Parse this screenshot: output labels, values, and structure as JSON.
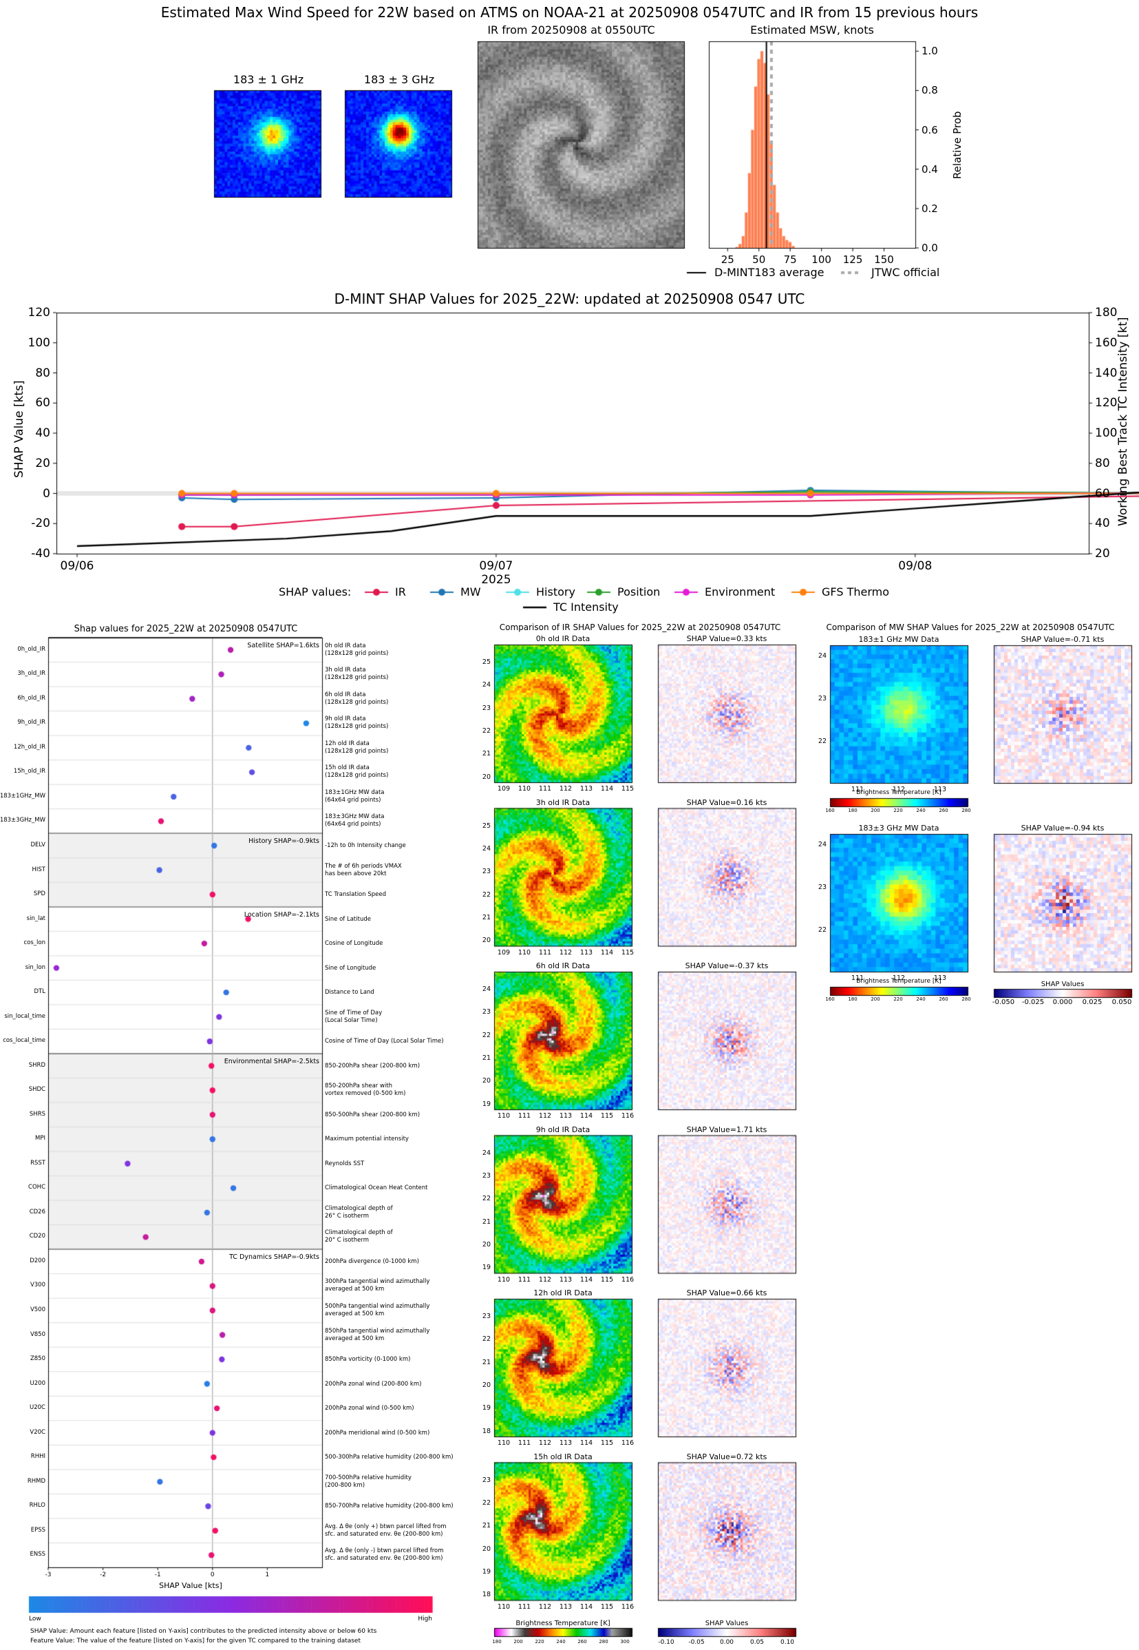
{
  "header": {
    "title": "Estimated Max Wind Speed for 22W based on ATMS on NOAA-21 at 20250908 0547UTC and IR from 15 previous hours",
    "mw1_title": "183 ± 1 GHz",
    "mw3_title": "183 ± 3 GHz",
    "ir_title": "IR from 20250908 at 0550UTC",
    "hist_title": "Estimated MSW, knots",
    "hist_ylabel": "Relative Prob",
    "hist_legend_avg": "D-MINT183 average",
    "hist_legend_jtwc": "JTWC official"
  },
  "shap_ts": {
    "title": "D-MINT SHAP Values for 2025_22W: updated at 20250908 0547 UTC",
    "ylabel_left": "SHAP Value [kts]",
    "ylabel_right": "Working Best Track TC Intensity [kt]",
    "xlabel": "2025",
    "legend_prefix": "SHAP values:",
    "legend_intensity": "TC Intensity"
  },
  "feature_panel": {
    "title": "Shap values for 2025_22W at 20250908 0547UTC",
    "xlabel": "SHAP Value [kts]",
    "colorbar_low": "Low",
    "colorbar_high": "High",
    "footnote1": "SHAP Value: Amount each feature [listed on Y-axis] contributes to the predicted intensity above or below 60 kts",
    "footnote2": "Feature Value: The value of the feature [listed on Y-axis] for the given TC compared to the training dataset"
  },
  "ir_compare": {
    "title": "Comparison of IR SHAP Values for 2025_22W at 20250908 0547UTC",
    "colorbar_label": "Brightness Temperature [K]",
    "shap_colorbar_label": "SHAP Values",
    "panels": [
      {
        "data_title": "0h old IR Data",
        "shap_title": "SHAP Value=0.33 kts",
        "yticks": [
          "25",
          "24",
          "23",
          "22",
          "21",
          "20"
        ],
        "xticks": [
          "109",
          "110",
          "111",
          "112",
          "113",
          "114",
          "115"
        ]
      },
      {
        "data_title": "3h old IR Data",
        "shap_title": "SHAP Value=0.16 kts",
        "yticks": [
          "25",
          "24",
          "23",
          "22",
          "21",
          "20"
        ],
        "xticks": [
          "109",
          "110",
          "111",
          "112",
          "113",
          "114",
          "115"
        ]
      },
      {
        "data_title": "6h old IR Data",
        "shap_title": "SHAP Value=-0.37 kts",
        "yticks": [
          "24",
          "23",
          "22",
          "21",
          "20",
          "19"
        ],
        "xticks": [
          "110",
          "111",
          "112",
          "113",
          "114",
          "115",
          "116"
        ]
      },
      {
        "data_title": "9h old IR Data",
        "shap_title": "SHAP Value=1.71 kts",
        "yticks": [
          "24",
          "23",
          "22",
          "21",
          "20",
          "19"
        ],
        "xticks": [
          "110",
          "111",
          "112",
          "113",
          "114",
          "115",
          "116"
        ]
      },
      {
        "data_title": "12h old IR Data",
        "shap_title": "SHAP Value=0.66 kts",
        "yticks": [
          "23",
          "22",
          "21",
          "20",
          "19",
          "18"
        ],
        "xticks": [
          "110",
          "111",
          "112",
          "113",
          "114",
          "115",
          "116"
        ]
      },
      {
        "data_title": "15h old IR Data",
        "shap_title": "SHAP Value=0.72 kts",
        "yticks": [
          "23",
          "22",
          "21",
          "20",
          "19",
          "18"
        ],
        "xticks": [
          "110",
          "111",
          "112",
          "113",
          "114",
          "115",
          "116"
        ]
      }
    ],
    "bt_ticks": [
      "180",
      "200",
      "220",
      "240",
      "260",
      "280",
      "300"
    ],
    "shap_ticks": [
      "-0.10",
      "-0.05",
      "0.00",
      "0.05",
      "0.10"
    ]
  },
  "mw_compare": {
    "title": "Comparison of MW SHAP Values for 2025_22W at 20250908 0547UTC",
    "panels": [
      {
        "data_title": "183±1 GHz MW Data",
        "shap_title": "SHAP Value=-0.71 kts",
        "yticks": [
          "24",
          "23",
          "22"
        ],
        "xticks": [
          "111",
          "112",
          "113"
        ]
      },
      {
        "data_title": "183±3 GHz MW Data",
        "shap_title": "SHAP Value=-0.94 kts",
        "yticks": [
          "24",
          "23",
          "22"
        ],
        "xticks": [
          "111",
          "112",
          "113"
        ]
      }
    ],
    "colorbar_label": "Brightness Temperature [K]",
    "bt_ticks": [
      "160",
      "180",
      "200",
      "220",
      "240",
      "260",
      "280"
    ],
    "shap_colorbar_label": "SHAP Values",
    "shap_ticks": [
      "-0.050",
      "-0.025",
      "0.000",
      "0.025",
      "0.050"
    ]
  },
  "colors": {
    "IR": "#e0194f",
    "MW": "#1f77b4",
    "History": "#4de0e6",
    "Position": "#2ca02c",
    "Environment": "#e61ad9",
    "GFS Thermo": "#ff7f0e",
    "TC Intensity": "#000000",
    "hist_bar": "#ff7f50",
    "shap_low": "#1e88e5",
    "shap_high": "#ff0d57"
  },
  "chart_data": [
    {
      "type": "bar",
      "title": "Estimated MSW, knots",
      "xlabel": "",
      "ylabel": "Relative Prob",
      "xlim": [
        10,
        175
      ],
      "ylim": [
        0,
        1.05
      ],
      "xticks": [
        25,
        50,
        75,
        100,
        125,
        150
      ],
      "yticks": [
        0.0,
        0.2,
        0.4,
        0.6,
        0.8,
        1.0
      ],
      "bin_width": 2.5,
      "x": [
        32.5,
        35,
        37.5,
        40,
        42.5,
        45,
        47.5,
        50,
        52.5,
        55,
        57.5,
        60,
        62.5,
        65,
        67.5,
        70,
        72.5,
        75,
        77.5
      ],
      "values": [
        0.005,
        0.02,
        0.06,
        0.18,
        0.38,
        0.6,
        0.82,
        0.96,
        1.0,
        0.94,
        0.78,
        0.54,
        0.32,
        0.18,
        0.1,
        0.06,
        0.04,
        0.03,
        0.01
      ],
      "avg_line": 56,
      "jtwc_line": 60,
      "legend": [
        "D-MINT183 average",
        "JTWC official"
      ]
    },
    {
      "type": "line",
      "title": "D-MINT SHAP Values for 2025_22W: updated at 20250908 0547 UTC",
      "xlabel": "2025",
      "ylabel": "SHAP Value [kts]",
      "y2label": "Working Best Track TC Intensity [kt]",
      "xticks": [
        "09/06",
        "09/07",
        "09/08"
      ],
      "ylim": [
        -40,
        120
      ],
      "yticks": [
        -40,
        -20,
        0,
        20,
        40,
        60,
        80,
        100,
        120
      ],
      "y2lim": [
        20,
        180
      ],
      "y2ticks": [
        20,
        40,
        60,
        80,
        100,
        120,
        140,
        160,
        180
      ],
      "series": [
        {
          "name": "IR",
          "x": [
            "09/06 06",
            "09/06 09",
            "09/07 00",
            "09/08 18",
            "09/08 21"
          ],
          "values": [
            -22,
            -22,
            -8,
            -1,
            3
          ]
        },
        {
          "name": "MW",
          "x": [
            "09/06 06",
            "09/06 09",
            "09/07 00",
            "09/07 18",
            "09/08 21"
          ],
          "values": [
            -3,
            -4,
            -3,
            2,
            -1
          ]
        },
        {
          "name": "History",
          "x": [
            "09/06 06",
            "09/06 09",
            "09/07 00",
            "09/07 18",
            "09/08 21"
          ],
          "values": [
            -1,
            -1,
            -1,
            1,
            0
          ]
        },
        {
          "name": "Position",
          "x": [
            "09/06 06",
            "09/06 09",
            "09/07 00",
            "09/07 18",
            "09/08 21"
          ],
          "values": [
            -1,
            -1,
            -1,
            1,
            0
          ]
        },
        {
          "name": "Environment",
          "x": [
            "09/06 06",
            "09/06 09",
            "09/07 00",
            "09/07 18",
            "09/08 21"
          ],
          "values": [
            -1,
            -1,
            -1,
            -1,
            1
          ]
        },
        {
          "name": "GFS Thermo",
          "x": [
            "09/06 06",
            "09/06 09",
            "09/07 00",
            "09/07 18",
            "09/08 21"
          ],
          "values": [
            0,
            0,
            0,
            0,
            0
          ]
        },
        {
          "name": "TC Intensity",
          "axis": "right",
          "x": [
            "09/06 00",
            "09/06 12",
            "09/06 18",
            "09/07 00",
            "09/07 12",
            "09/07 18",
            "09/08 00",
            "09/08 06",
            "09/08 12",
            "09/08 18",
            "09/08 21"
          ],
          "values": [
            25,
            30,
            35,
            45,
            45,
            45,
            50,
            55,
            60,
            65,
            60
          ]
        }
      ]
    },
    {
      "type": "scatter",
      "title": "Shap values for 2025_22W at 20250908 0547UTC",
      "xlabel": "SHAP Value [kts]",
      "xlim": [
        -3,
        2
      ],
      "xticks": [
        -3,
        -2,
        -1,
        0,
        1
      ],
      "groups": [
        {
          "label": "Satellite SHAP=1.6kts",
          "start": 0,
          "end": 7,
          "shaded": false
        },
        {
          "label": "History SHAP=-0.9kts",
          "start": 8,
          "end": 10,
          "shaded": true
        },
        {
          "label": "Location SHAP=-2.1kts",
          "start": 11,
          "end": 16,
          "shaded": false
        },
        {
          "label": "Environmental SHAP=-2.5kts",
          "start": 17,
          "end": 24,
          "shaded": true
        },
        {
          "label": "TC Dynamics SHAP=-0.9kts",
          "start": 25,
          "end": 37,
          "shaded": false
        }
      ],
      "features": [
        {
          "name": "0h_old_IR",
          "desc": [
            "0h old IR data",
            "(128x128 grid points)"
          ],
          "shap": 0.33,
          "value": 0.7
        },
        {
          "name": "3h_old_IR",
          "desc": [
            "3h old IR data",
            "(128x128 grid points)"
          ],
          "shap": 0.16,
          "value": 0.65
        },
        {
          "name": "6h_old_IR",
          "desc": [
            "6h old IR data",
            "(128x128 grid points)"
          ],
          "shap": -0.37,
          "value": 0.6
        },
        {
          "name": "9h_old_IR",
          "desc": [
            "9h old IR data",
            "(128x128 grid points)"
          ],
          "shap": 1.71,
          "value": 0.0
        },
        {
          "name": "12h_old_IR",
          "desc": [
            "12h old IR data",
            "(128x128 grid points)"
          ],
          "shap": 0.66,
          "value": 0.2
        },
        {
          "name": "15h_old_IR",
          "desc": [
            "15h old IR data",
            "(128x128 grid points)"
          ],
          "shap": 0.72,
          "value": 0.3
        },
        {
          "name": "183±1GHz_MW",
          "desc": [
            "183±1GHz MW data",
            "(64x64 grid points)"
          ],
          "shap": -0.71,
          "value": 0.2
        },
        {
          "name": "183±3GHz_MW",
          "desc": [
            "183±3GHz MW data",
            "(64x64 grid points)"
          ],
          "shap": -0.94,
          "value": 0.9
        },
        {
          "name": "DELV",
          "desc": [
            "-12h to 0h Intensity change"
          ],
          "shap": 0.03,
          "value": 0.1
        },
        {
          "name": "HIST",
          "desc": [
            "The # of 6h periods VMAX",
            "has been above 20kt"
          ],
          "shap": -0.97,
          "value": 0.2
        },
        {
          "name": "SPD",
          "desc": [
            "TC Translation Speed"
          ],
          "shap": 0.0,
          "value": 0.95
        },
        {
          "name": "sin_lat",
          "desc": [
            "Sine of Latitude"
          ],
          "shap": 0.65,
          "value": 0.95
        },
        {
          "name": "cos_lon",
          "desc": [
            "Cosine of Longitude"
          ],
          "shap": -0.15,
          "value": 0.75
        },
        {
          "name": "sin_lon",
          "desc": [
            "Sine of Longitude"
          ],
          "shap": -2.85,
          "value": 0.55
        },
        {
          "name": "DTL",
          "desc": [
            "Distance to Land"
          ],
          "shap": 0.25,
          "value": 0.1
        },
        {
          "name": "sin_local_time",
          "desc": [
            "Sine of Time of Day",
            "(Local Solar Time)"
          ],
          "shap": 0.12,
          "value": 0.45
        },
        {
          "name": "cos_local_time",
          "desc": [
            "Cosine of Time of Day (Local Solar Time)"
          ],
          "shap": -0.05,
          "value": 0.45
        },
        {
          "name": "SHRD",
          "desc": [
            "850-200hPa shear (200-800 km)"
          ],
          "shap": -0.02,
          "value": 0.95
        },
        {
          "name": "SHDC",
          "desc": [
            "850-200hPa shear with",
            "vortex removed (0-500 km)"
          ],
          "shap": 0.0,
          "value": 0.95
        },
        {
          "name": "SHRS",
          "desc": [
            "850-500hPa shear (200-800 km)"
          ],
          "shap": 0.0,
          "value": 0.9
        },
        {
          "name": "MPI",
          "desc": [
            "Maximum potential intensity"
          ],
          "shap": 0.0,
          "value": 0.1
        },
        {
          "name": "RSST",
          "desc": [
            "Reynolds SST"
          ],
          "shap": -1.55,
          "value": 0.45
        },
        {
          "name": "COHC",
          "desc": [
            "Climatological Ocean Heat Content"
          ],
          "shap": 0.38,
          "value": 0.1
        },
        {
          "name": "CD26",
          "desc": [
            "Climatological depth of",
            "26° C isotherm"
          ],
          "shap": -0.1,
          "value": 0.1
        },
        {
          "name": "CD20",
          "desc": [
            "Climatological depth of",
            "20° C isotherm"
          ],
          "shap": -1.22,
          "value": 0.75
        },
        {
          "name": "D200",
          "desc": [
            "200hPa divergence (0-1000 km)"
          ],
          "shap": -0.2,
          "value": 0.8
        },
        {
          "name": "V300",
          "desc": [
            "300hPa tangential wind azimuthally",
            "averaged at 500 km"
          ],
          "shap": 0.0,
          "value": 0.85
        },
        {
          "name": "V500",
          "desc": [
            "500hPa tangential wind azimuthally",
            "averaged at 500 km"
          ],
          "shap": 0.0,
          "value": 0.85
        },
        {
          "name": "V850",
          "desc": [
            "850hPa tangential wind azimuthally",
            "averaged at 500 km"
          ],
          "shap": 0.18,
          "value": 0.7
        },
        {
          "name": "Z850",
          "desc": [
            "850hPa vorticity (0-1000 km)"
          ],
          "shap": 0.17,
          "value": 0.45
        },
        {
          "name": "U200",
          "desc": [
            "200hPa zonal wind (200-800 km)"
          ],
          "shap": -0.1,
          "value": 0.05
        },
        {
          "name": "U20C",
          "desc": [
            "200hPa zonal wind (0-500 km)"
          ],
          "shap": 0.08,
          "value": 0.9
        },
        {
          "name": "V20C",
          "desc": [
            "200hPa meridional wind (0-500 km)"
          ],
          "shap": 0.0,
          "value": 0.45
        },
        {
          "name": "RHHI",
          "desc": [
            "500-300hPa relative humidity (200-800 km)"
          ],
          "shap": 0.02,
          "value": 0.95
        },
        {
          "name": "RHMD",
          "desc": [
            "700-500hPa relative humidity",
            "(200-800 km)"
          ],
          "shap": -0.96,
          "value": 0.1
        },
        {
          "name": "RHLO",
          "desc": [
            "850-700hPa relative humidity (200-800 km)"
          ],
          "shap": -0.08,
          "value": 0.35
        },
        {
          "name": "EPSS",
          "desc": [
            "Avg. Δ θe (only +) btwn parcel lifted from",
            "sfc. and saturated env. θe (200-800 km)"
          ],
          "shap": 0.05,
          "value": 0.95
        },
        {
          "name": "ENSS",
          "desc": [
            "Avg. Δ θe (only -) btwn parcel lifted from",
            "sfc. and saturated env. θe (200-800 km)"
          ],
          "shap": -0.02,
          "value": 0.9
        }
      ]
    }
  ]
}
